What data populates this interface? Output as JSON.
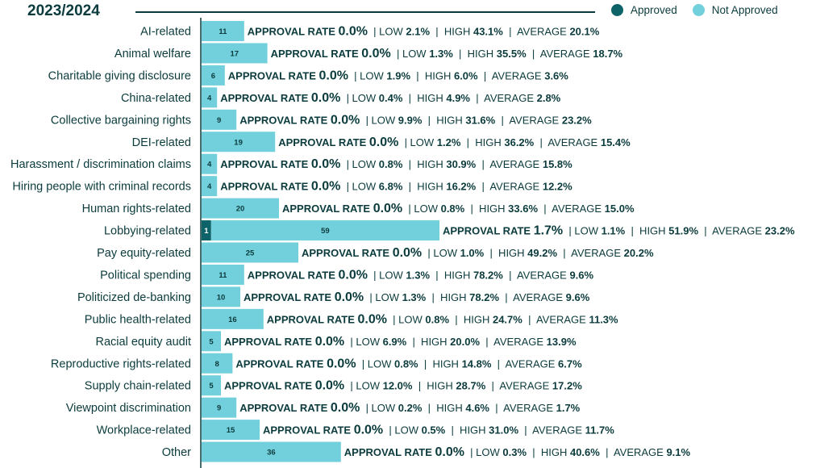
{
  "header": {
    "year": "2023/2024"
  },
  "legend": {
    "items": [
      {
        "label": "Approved",
        "color": "#0d6368"
      },
      {
        "label": "Not Approved",
        "color": "#72cfdc"
      }
    ]
  },
  "stat_labels": {
    "approval": "APPROVAL RATE",
    "low": "LOW",
    "high": "HIGH",
    "average": "AVERAGE",
    "sep": "|"
  },
  "chart_data": {
    "type": "bar",
    "orientation": "horizontal",
    "stacked": true,
    "title": "2023/2024",
    "categories": [
      "AI-related",
      "Animal welfare",
      "Charitable giving disclosure",
      "China-related",
      "Collective bargaining rights",
      "DEI-related",
      "Harassment / discrimination claims",
      "Hiring people with criminal records",
      "Human rights-related",
      "Lobbying-related",
      "Pay equity-related",
      "Political spending",
      "Politicized de-banking",
      "Public health-related",
      "Racial equity audit",
      "Reproductive rights-related",
      "Supply chain-related",
      "Viewpoint discrimination",
      "Workplace-related",
      "Other"
    ],
    "series": [
      {
        "name": "Approved",
        "values": [
          0,
          0,
          0,
          0,
          0,
          0,
          0,
          0,
          0,
          1,
          0,
          0,
          0,
          0,
          0,
          0,
          0,
          0,
          0,
          0
        ]
      },
      {
        "name": "Not Approved",
        "values": [
          11,
          17,
          6,
          4,
          9,
          19,
          4,
          4,
          20,
          59,
          25,
          11,
          10,
          16,
          5,
          8,
          5,
          9,
          15,
          36
        ]
      }
    ],
    "approval_rate": [
      "0.0%",
      "0.0%",
      "0.0%",
      "0.0%",
      "0.0%",
      "0.0%",
      "0.0%",
      "0.0%",
      "0.0%",
      "1.7%",
      "0.0%",
      "0.0%",
      "0.0%",
      "0.0%",
      "0.0%",
      "0.0%",
      "0.0%",
      "0.0%",
      "0.0%",
      "0.0%"
    ],
    "low": [
      "2.1%",
      "1.3%",
      "1.9%",
      "0.4%",
      "9.9%",
      "1.2%",
      "0.8%",
      "6.8%",
      "0.8%",
      "1.1%",
      "1.0%",
      "1.3%",
      "1.3%",
      "0.8%",
      "6.9%",
      "0.8%",
      "12.0%",
      "0.2%",
      "0.5%",
      "0.3%"
    ],
    "high": [
      "43.1%",
      "35.5%",
      "6.0%",
      "4.9%",
      "31.6%",
      "36.2%",
      "30.9%",
      "16.2%",
      "33.6%",
      "51.9%",
      "49.2%",
      "78.2%",
      "78.2%",
      "24.7%",
      "20.0%",
      "14.8%",
      "28.7%",
      "4.6%",
      "31.0%",
      "40.6%"
    ],
    "average": [
      "20.1%",
      "18.7%",
      "3.6%",
      "2.8%",
      "23.2%",
      "15.4%",
      "15.8%",
      "12.2%",
      "15.0%",
      "23.2%",
      "20.2%",
      "9.6%",
      "9.6%",
      "11.3%",
      "13.9%",
      "6.7%",
      "17.2%",
      "1.7%",
      "11.7%",
      "9.1%"
    ]
  }
}
